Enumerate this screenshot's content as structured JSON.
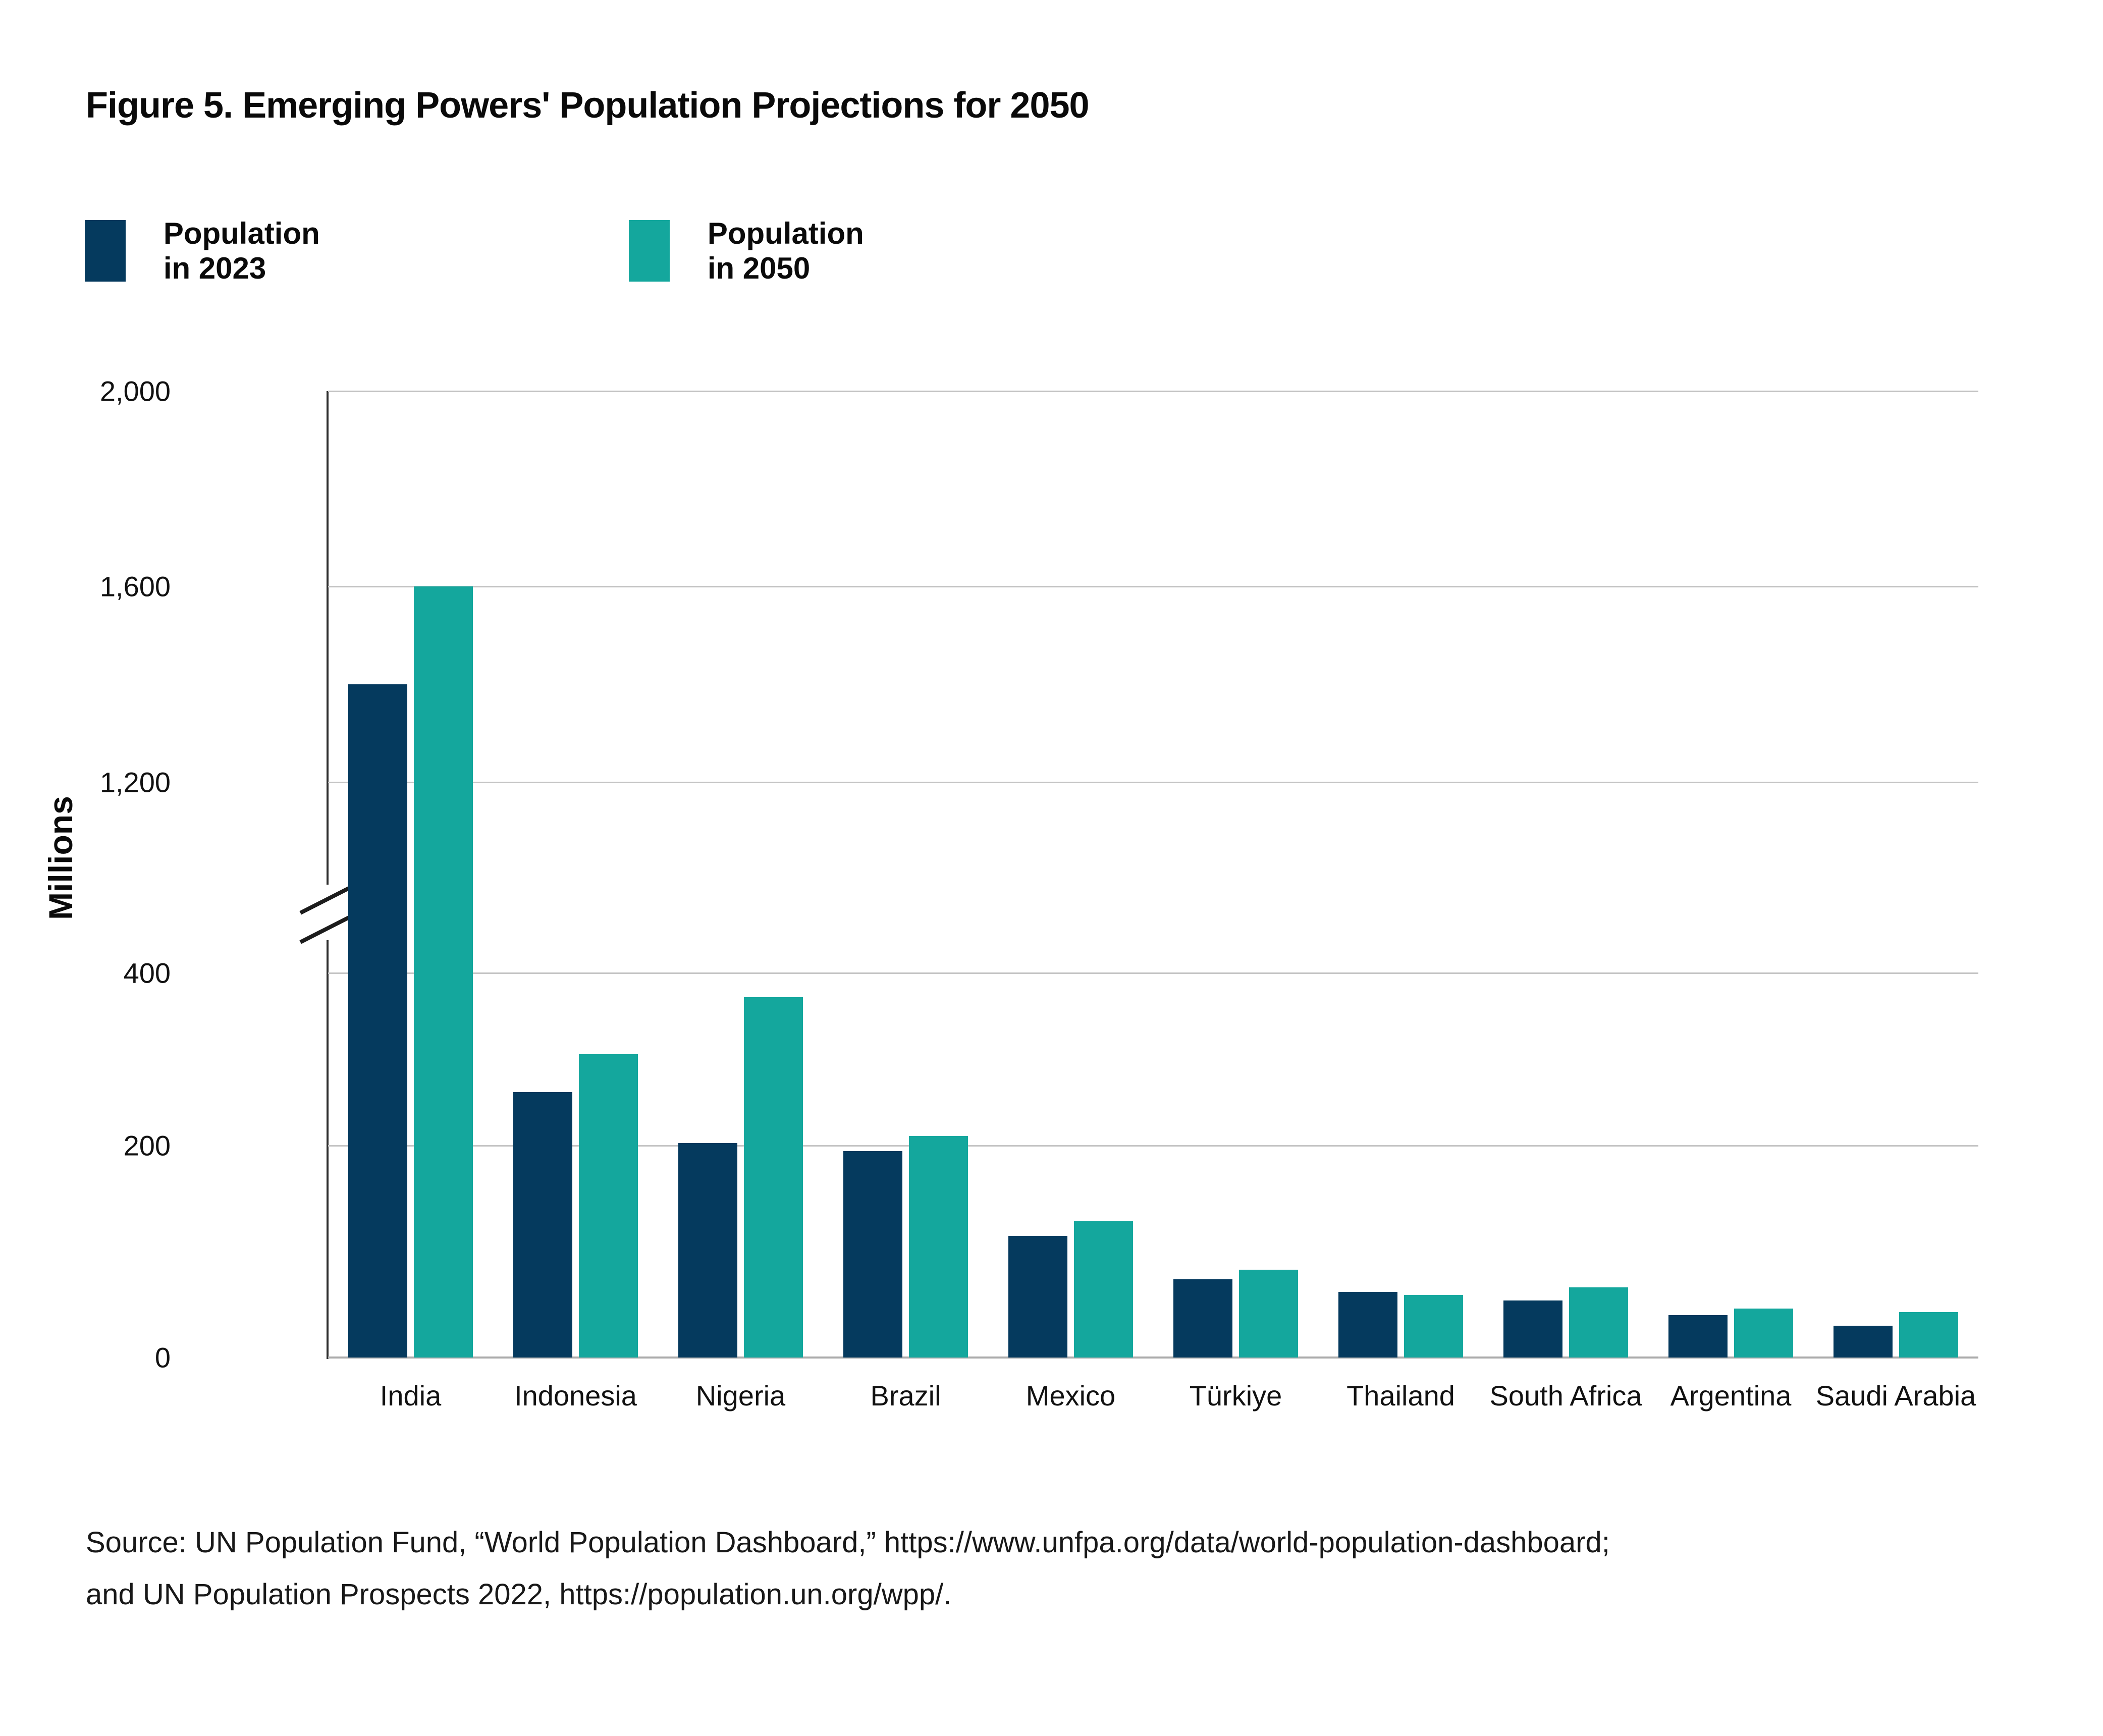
{
  "figure": {
    "title": "Figure 5. Emerging Powers' Population Projections for 2050"
  },
  "legend": {
    "items": [
      {
        "label": "Population in 2023",
        "color": "#053A5E"
      },
      {
        "label": "Population in 2050",
        "color": "#14A79D"
      }
    ]
  },
  "chart_data": {
    "type": "bar",
    "title": "Figure 5. Emerging Powers' Population Projections for 2050",
    "xlabel": "",
    "ylabel": "Millions",
    "categories": [
      "India",
      "Indonesia",
      "Nigeria",
      "Brazil",
      "Mexico",
      "Türkiye",
      "Thailand",
      "South Africa",
      "Argentina",
      "Saudi Arabia"
    ],
    "series": [
      {
        "name": "Population in 2023",
        "color": "#053A5E",
        "values": [
          1400,
          262,
          203,
          195,
          115,
          74,
          62,
          54,
          40,
          30
        ]
      },
      {
        "name": "Population in 2050",
        "color": "#14A79D",
        "values": [
          1600,
          306,
          372,
          211,
          129,
          83,
          59,
          66,
          46,
          43
        ]
      }
    ],
    "unit": "Millions",
    "y_ticks": [
      0,
      200,
      400,
      1200,
      1600,
      2000
    ],
    "ylim": [
      0,
      2000
    ],
    "axis_break": {
      "between": [
        400,
        1200
      ]
    },
    "grid": true,
    "legend_position": "top-left"
  },
  "source": {
    "line1": "Source: UN Population Fund, “World Population Dashboard,” https://www.unfpa.org/data/world-population-dashboard;",
    "line2": "and UN Population Prospects 2022,  https://population.un.org/wpp/."
  }
}
